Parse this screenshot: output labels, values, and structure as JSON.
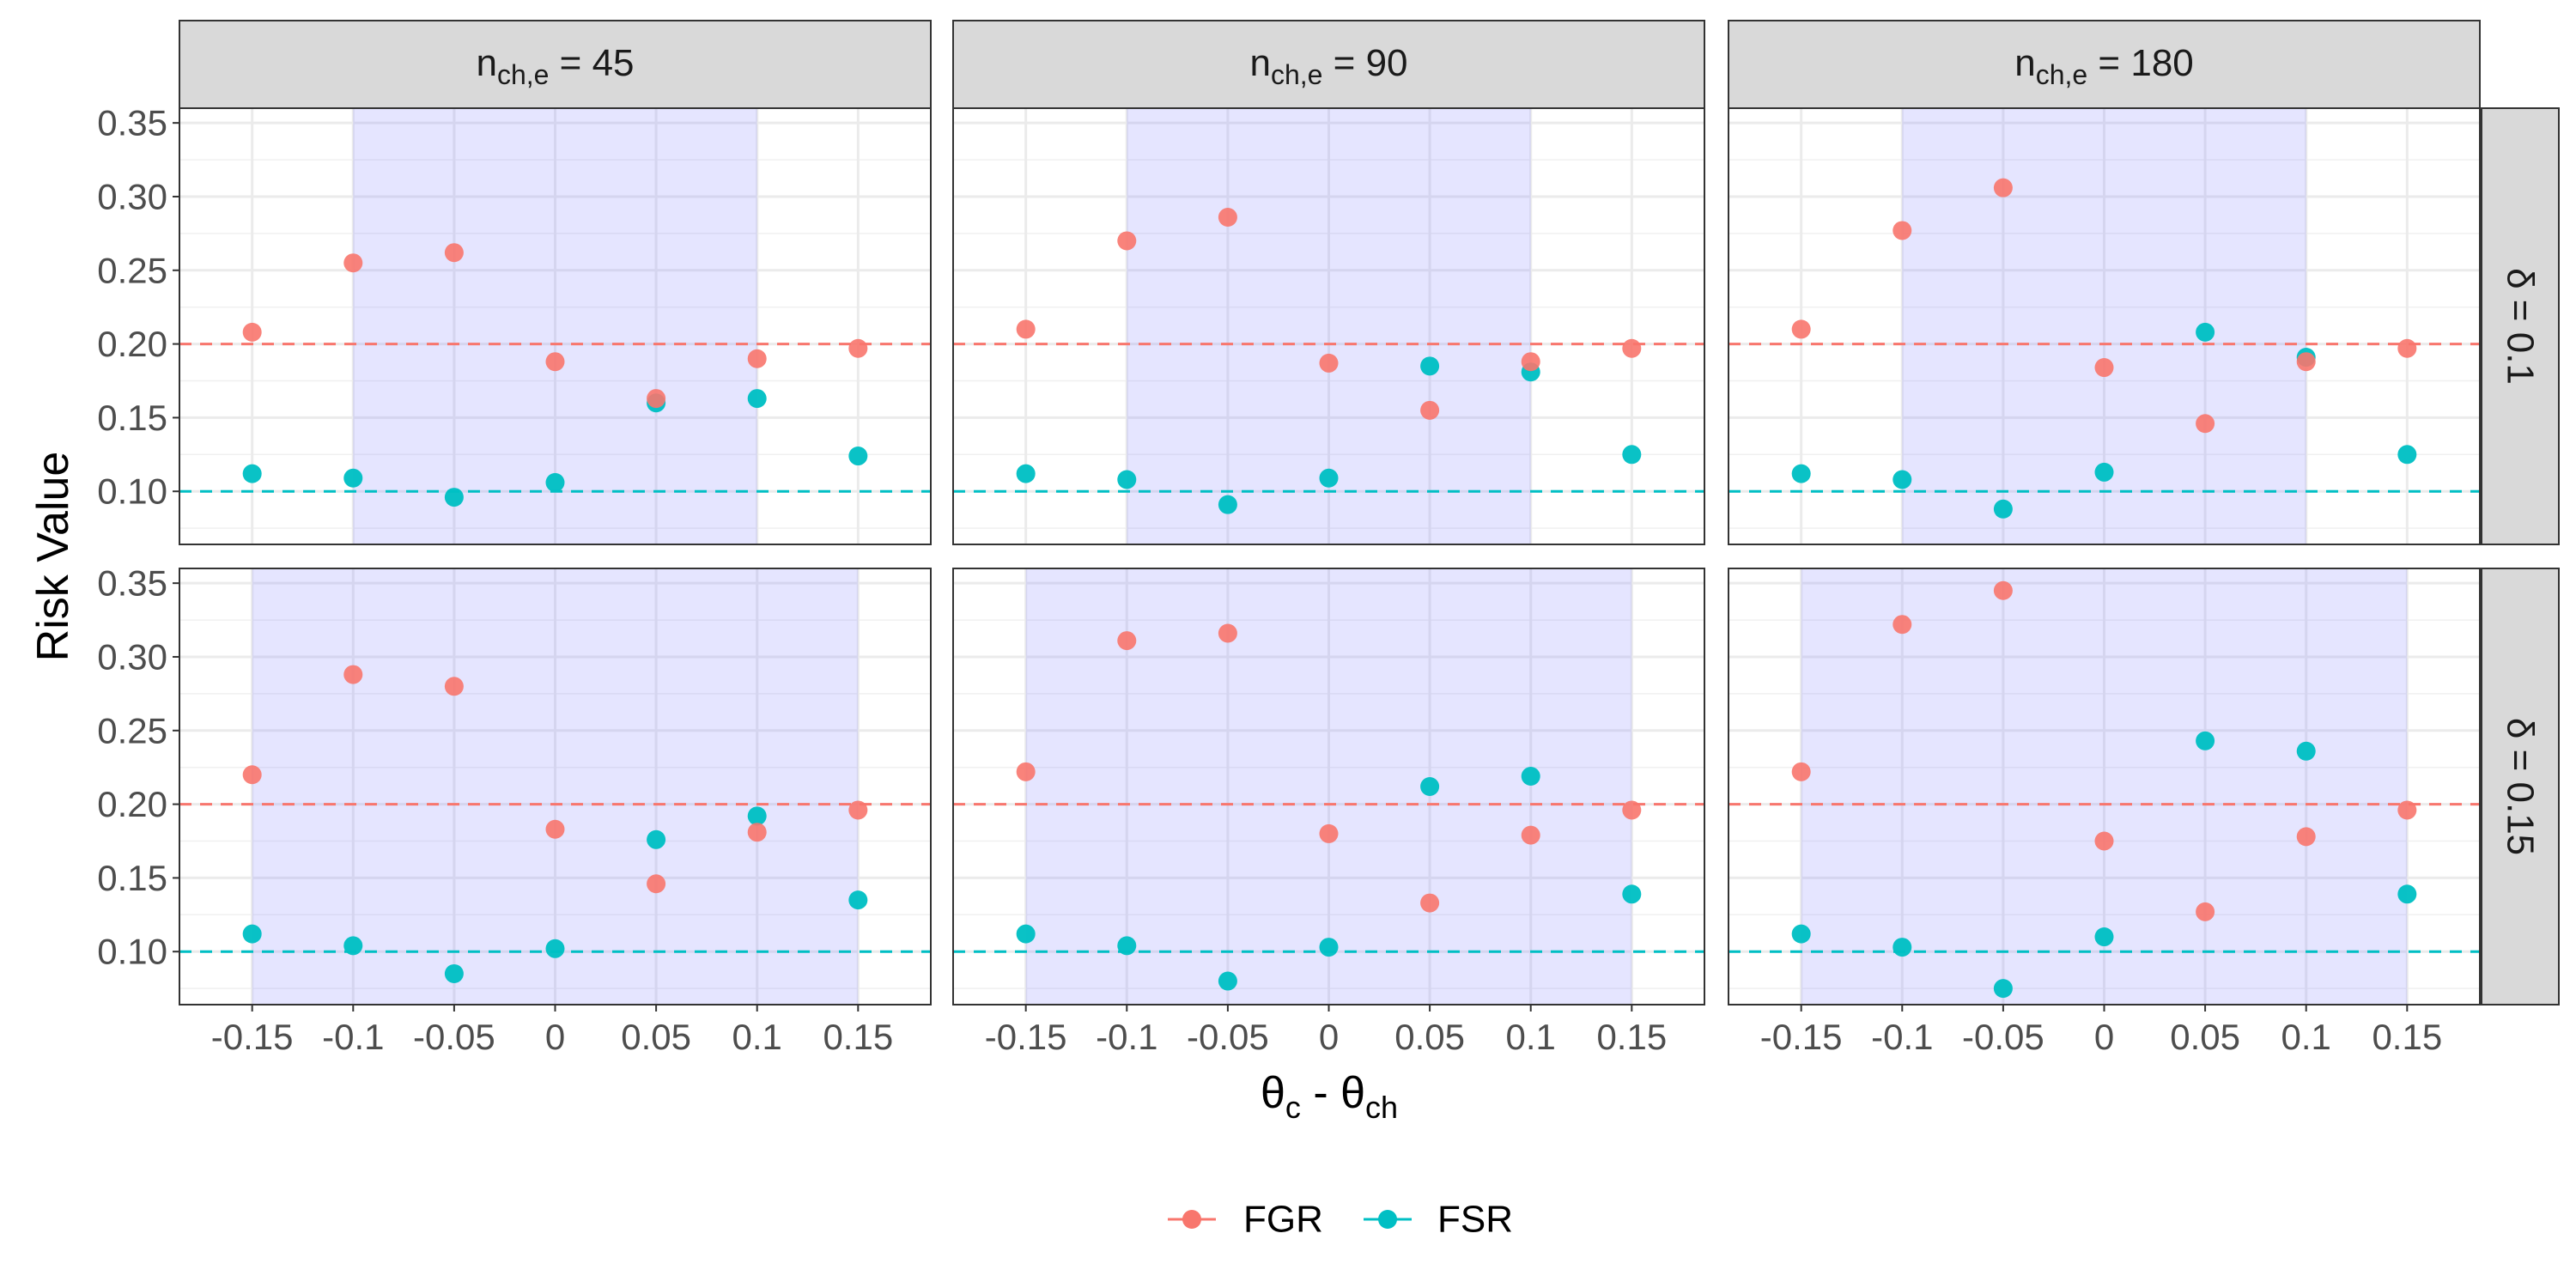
{
  "chart_data": {
    "type": "scatter",
    "ylabel": "Risk Value",
    "xlabel": {
      "base1": "θ",
      "sub1": "c",
      "sep": " - ",
      "base2": "θ",
      "sub2": "ch"
    },
    "column_strips": [
      {
        "base": "n",
        "sub": "ch,e",
        "rest": " = 45"
      },
      {
        "base": "n",
        "sub": "ch,e",
        "rest": " = 90"
      },
      {
        "base": "n",
        "sub": "ch,e",
        "rest": " = 180"
      }
    ],
    "row_strips": [
      "δ = 0.1",
      "δ = 0.15"
    ],
    "x_ticks": [
      -0.15,
      -0.1,
      -0.05,
      0,
      0.05,
      0.1,
      0.15
    ],
    "x_tick_labels": [
      "-0.15",
      "-0.1",
      "-0.05",
      "0",
      "0.05",
      "0.1",
      "0.15"
    ],
    "y_ticks": [
      0.1,
      0.15,
      0.2,
      0.25,
      0.3,
      0.35
    ],
    "y_tick_labels": [
      "0.10",
      "0.15",
      "0.20",
      "0.25",
      "0.30",
      "0.35"
    ],
    "xlim": [
      -0.186,
      0.186
    ],
    "ylim": [
      0.064,
      0.36
    ],
    "grid": true,
    "legend_position": "bottom",
    "reference_lines": [
      {
        "series": "FGR",
        "y": 0.2,
        "style": "dashed"
      },
      {
        "series": "FSR",
        "y": 0.1,
        "style": "dashed"
      }
    ],
    "series": [
      {
        "name": "FGR",
        "color": "#F8766D"
      },
      {
        "name": "FSR",
        "color": "#00BFC4"
      }
    ],
    "shade_color": "#7B7BFF",
    "x": [
      -0.15,
      -0.1,
      -0.05,
      0,
      0.05,
      0.1,
      0.15
    ],
    "panels": [
      {
        "row": 0,
        "col": 0,
        "shade": [
          -0.1,
          0.1
        ],
        "FGR": [
          0.208,
          0.255,
          0.262,
          0.188,
          0.163,
          0.19,
          0.197
        ],
        "FSR": [
          0.112,
          0.109,
          0.096,
          0.106,
          0.16,
          0.163,
          0.124
        ]
      },
      {
        "row": 0,
        "col": 1,
        "shade": [
          -0.1,
          0.1
        ],
        "FGR": [
          0.21,
          0.27,
          0.286,
          0.187,
          0.155,
          0.188,
          0.197
        ],
        "FSR": [
          0.112,
          0.108,
          0.091,
          0.109,
          0.185,
          0.181,
          0.125
        ]
      },
      {
        "row": 0,
        "col": 2,
        "shade": [
          -0.1,
          0.1
        ],
        "FGR": [
          0.21,
          0.277,
          0.306,
          0.184,
          0.146,
          0.188,
          0.197
        ],
        "FSR": [
          0.112,
          0.108,
          0.088,
          0.113,
          0.208,
          0.191,
          0.125
        ]
      },
      {
        "row": 1,
        "col": 0,
        "shade": [
          -0.15,
          0.15
        ],
        "FGR": [
          0.22,
          0.288,
          0.28,
          0.183,
          0.146,
          0.181,
          0.196
        ],
        "FSR": [
          0.112,
          0.104,
          0.085,
          0.102,
          0.176,
          0.192,
          0.135
        ]
      },
      {
        "row": 1,
        "col": 1,
        "shade": [
          -0.15,
          0.15
        ],
        "FGR": [
          0.222,
          0.311,
          0.316,
          0.18,
          0.133,
          0.179,
          0.196
        ],
        "FSR": [
          0.112,
          0.104,
          0.08,
          0.103,
          0.212,
          0.219,
          0.139
        ]
      },
      {
        "row": 1,
        "col": 2,
        "shade": [
          -0.15,
          0.15
        ],
        "FGR": [
          0.222,
          0.322,
          0.345,
          0.175,
          0.127,
          0.178,
          0.196
        ],
        "FSR": [
          0.112,
          0.103,
          0.075,
          0.11,
          0.243,
          0.236,
          0.139
        ]
      }
    ]
  }
}
